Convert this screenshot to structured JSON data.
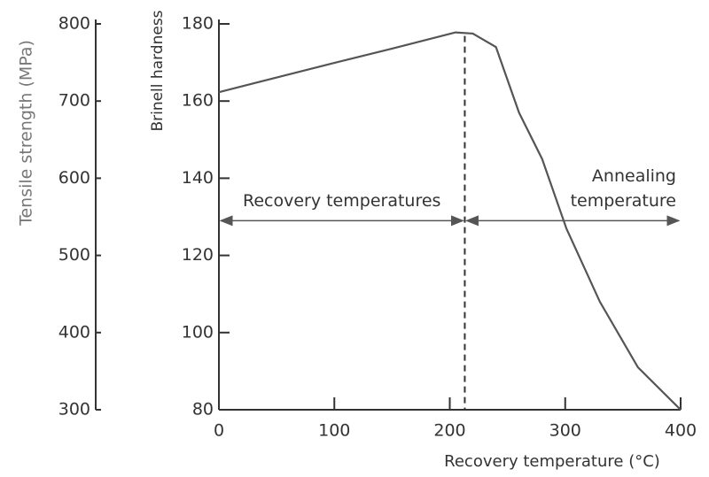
{
  "chart_data": {
    "type": "line",
    "x_label": "Recovery temperature (°C)",
    "y_label": "Brinell hardness",
    "y2_label": "Tensile strength (MPa)",
    "x": [
      0,
      30,
      100,
      150,
      205,
      220,
      240,
      260,
      280,
      301,
      330,
      363,
      400
    ],
    "series": [
      {
        "name": "Brinell hardness",
        "color": "#555555",
        "values": [
          162.3,
          164.6,
          169.9,
          173.6,
          177.8,
          177.5,
          174,
          157,
          145,
          127,
          108,
          91,
          80
        ]
      }
    ],
    "xlim": [
      0,
      400
    ],
    "xticks": [
      0,
      100,
      200,
      300,
      400
    ],
    "ylim": [
      80,
      180
    ],
    "yticks": [
      80,
      100,
      120,
      140,
      160,
      180
    ],
    "y2lim": [
      300,
      800
    ],
    "y2ticks": [
      300,
      400,
      500,
      600,
      700,
      800
    ],
    "vline": 213,
    "annotations": [
      {
        "lines": [
          "Recovery temperatures"
        ],
        "from": 0,
        "to": 213,
        "y": 129
      },
      {
        "lines": [
          "Annealing",
          "temperature"
        ],
        "from": 213,
        "to": 400,
        "y": 129
      }
    ]
  }
}
